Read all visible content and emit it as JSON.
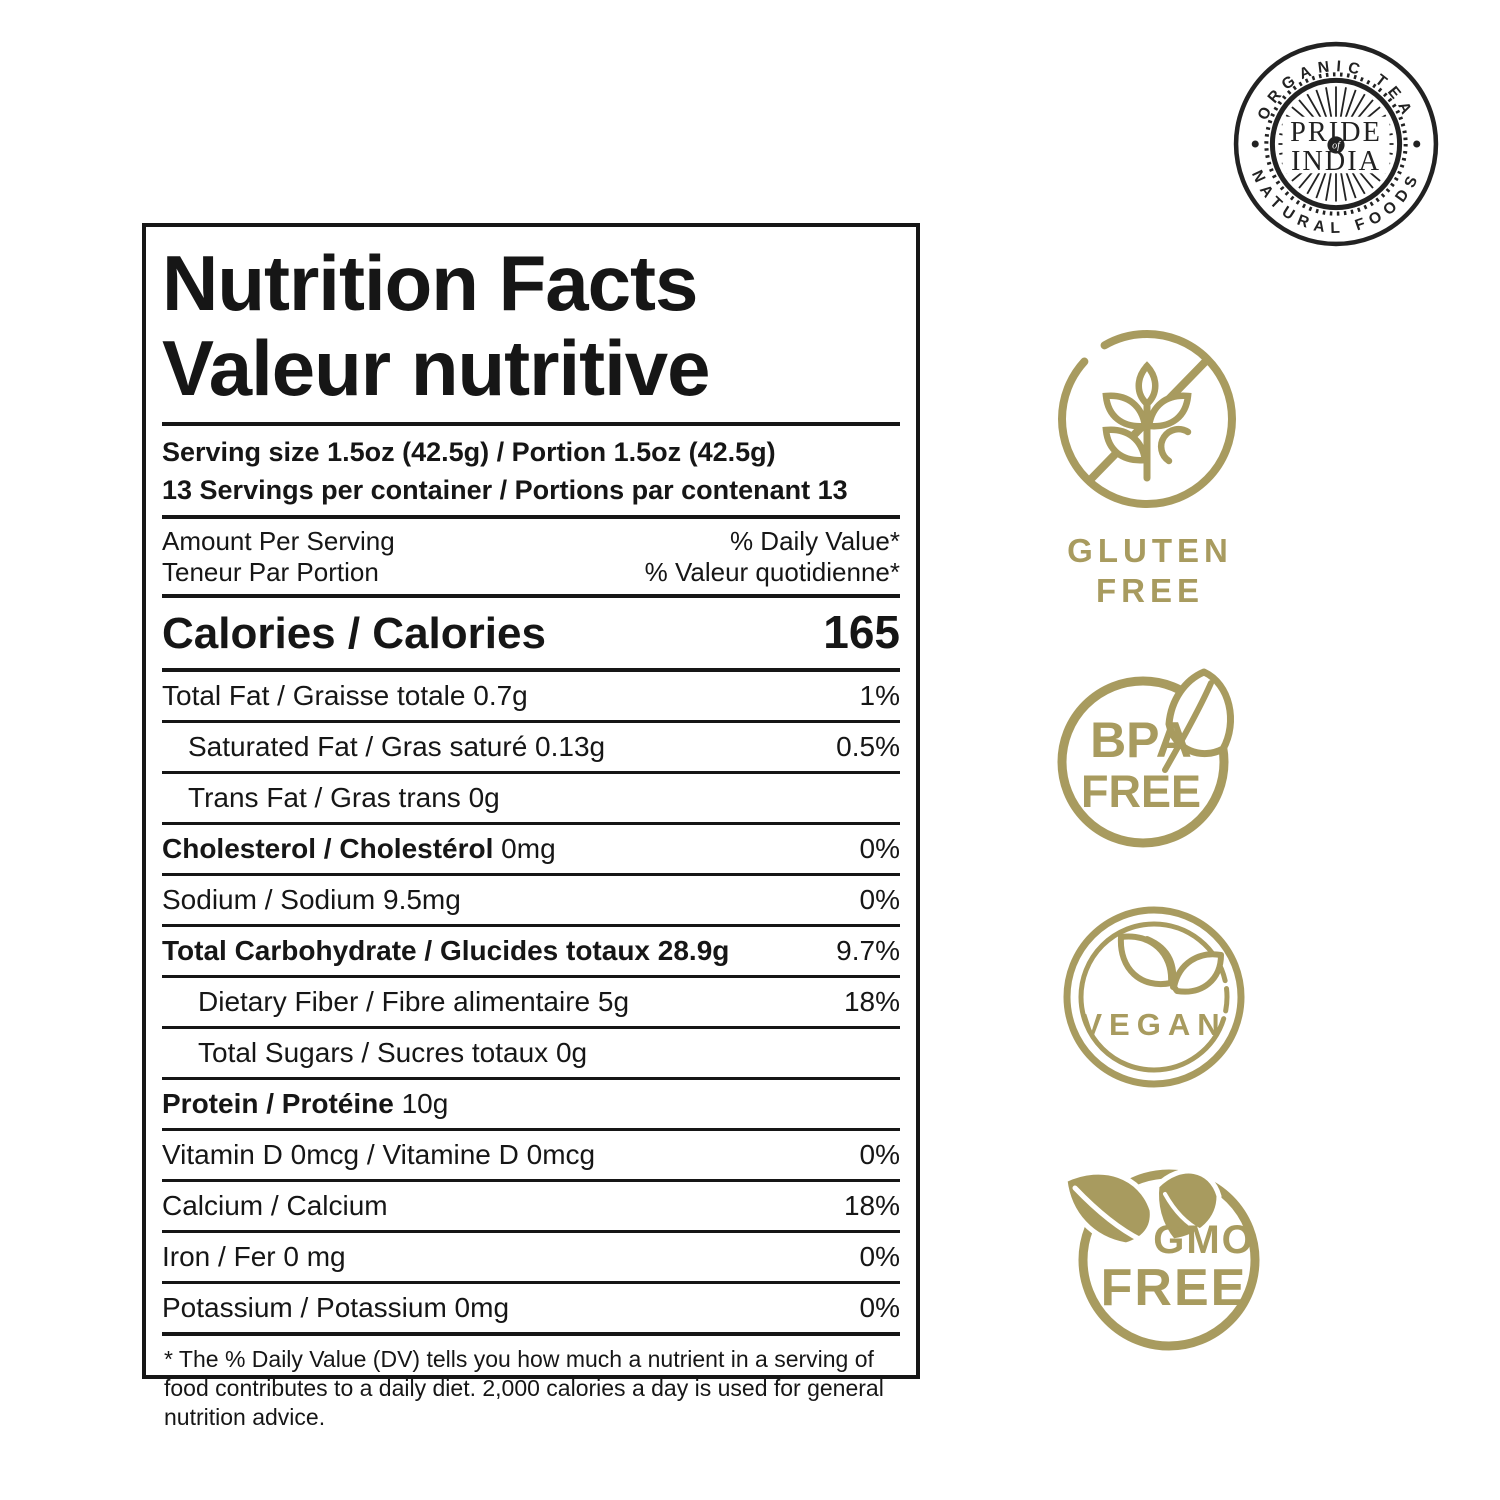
{
  "colors": {
    "badge_gold": "#a89b5f",
    "label_black": "#161616",
    "logo_black": "#222222"
  },
  "logo": {
    "arc_top": "ORGANIC TEA",
    "arc_bottom": "NATURAL FOODS",
    "center_top": "PRIDE",
    "center_mid": "of",
    "center_bottom": "INDIA"
  },
  "badges": {
    "gluten": {
      "line1": "GLUTEN",
      "line2": "FREE"
    },
    "bpa": {
      "line1": "BPA",
      "line2": "FREE"
    },
    "vegan": {
      "label": "VEGAN"
    },
    "gmo": {
      "line1": "GMO",
      "line2": "FREE"
    }
  },
  "nutrition_label": {
    "title_en": "Nutrition Facts",
    "title_fr": "Valeur nutritive",
    "serving_size": "Serving size 1.5oz (42.5g) / Portion 1.5oz (42.5g)",
    "servings_per_container": "13 Servings per container / Portions par contenant 13",
    "amount_per_serving_en": "Amount Per Serving",
    "amount_per_serving_fr": "Teneur Par Portion",
    "daily_value_en": "% Daily Value*",
    "daily_value_fr": "% Valeur quotidienne*",
    "calories_label": "Calories / Calories",
    "calories_value": "165",
    "rows": [
      {
        "bold_part": "",
        "normal_part": "Total Fat / Graisse totale 0.7g",
        "value": "1%",
        "indent": 0
      },
      {
        "bold_part": "",
        "normal_part": "Saturated Fat / Gras saturé 0.13g",
        "value": "0.5%",
        "indent": 1
      },
      {
        "bold_part": "",
        "normal_part": "Trans Fat / Gras trans 0g",
        "value": "",
        "indent": 1
      },
      {
        "bold_part": "Cholesterol / Cholestérol",
        "normal_part": " 0mg",
        "value": "0%",
        "indent": 0
      },
      {
        "bold_part": "",
        "normal_part": "Sodium / Sodium 9.5mg",
        "value": "0%",
        "indent": 0
      },
      {
        "bold_part": "Total Carbohydrate / Glucides totaux 28.9g",
        "normal_part": "",
        "value": "9.7%",
        "indent": 0
      },
      {
        "bold_part": "",
        "normal_part": "Dietary Fiber / Fibre alimentaire 5g",
        "value": "18%",
        "indent": 2
      },
      {
        "bold_part": "",
        "normal_part": "Total Sugars / Sucres totaux 0g",
        "value": "",
        "indent": 2
      },
      {
        "bold_part": "Protein / Protéine",
        "normal_part": " 10g",
        "value": "",
        "indent": 0
      },
      {
        "bold_part": "",
        "normal_part": "Vitamin D 0mcg / Vitamine D 0mcg",
        "value": "0%",
        "indent": 0
      },
      {
        "bold_part": "",
        "normal_part": "Calcium / Calcium",
        "value": "18%",
        "indent": 0
      },
      {
        "bold_part": "",
        "normal_part": "Iron / Fer 0 mg",
        "value": "0%",
        "indent": 0
      },
      {
        "bold_part": "",
        "normal_part": "Potassium / Potassium 0mg",
        "value": "0%",
        "indent": 0
      }
    ],
    "footnote": "* The % Daily Value (DV) tells you how much a nutrient in a serving of food contributes to a daily diet. 2,000 calories a day is used for general nutrition advice."
  }
}
